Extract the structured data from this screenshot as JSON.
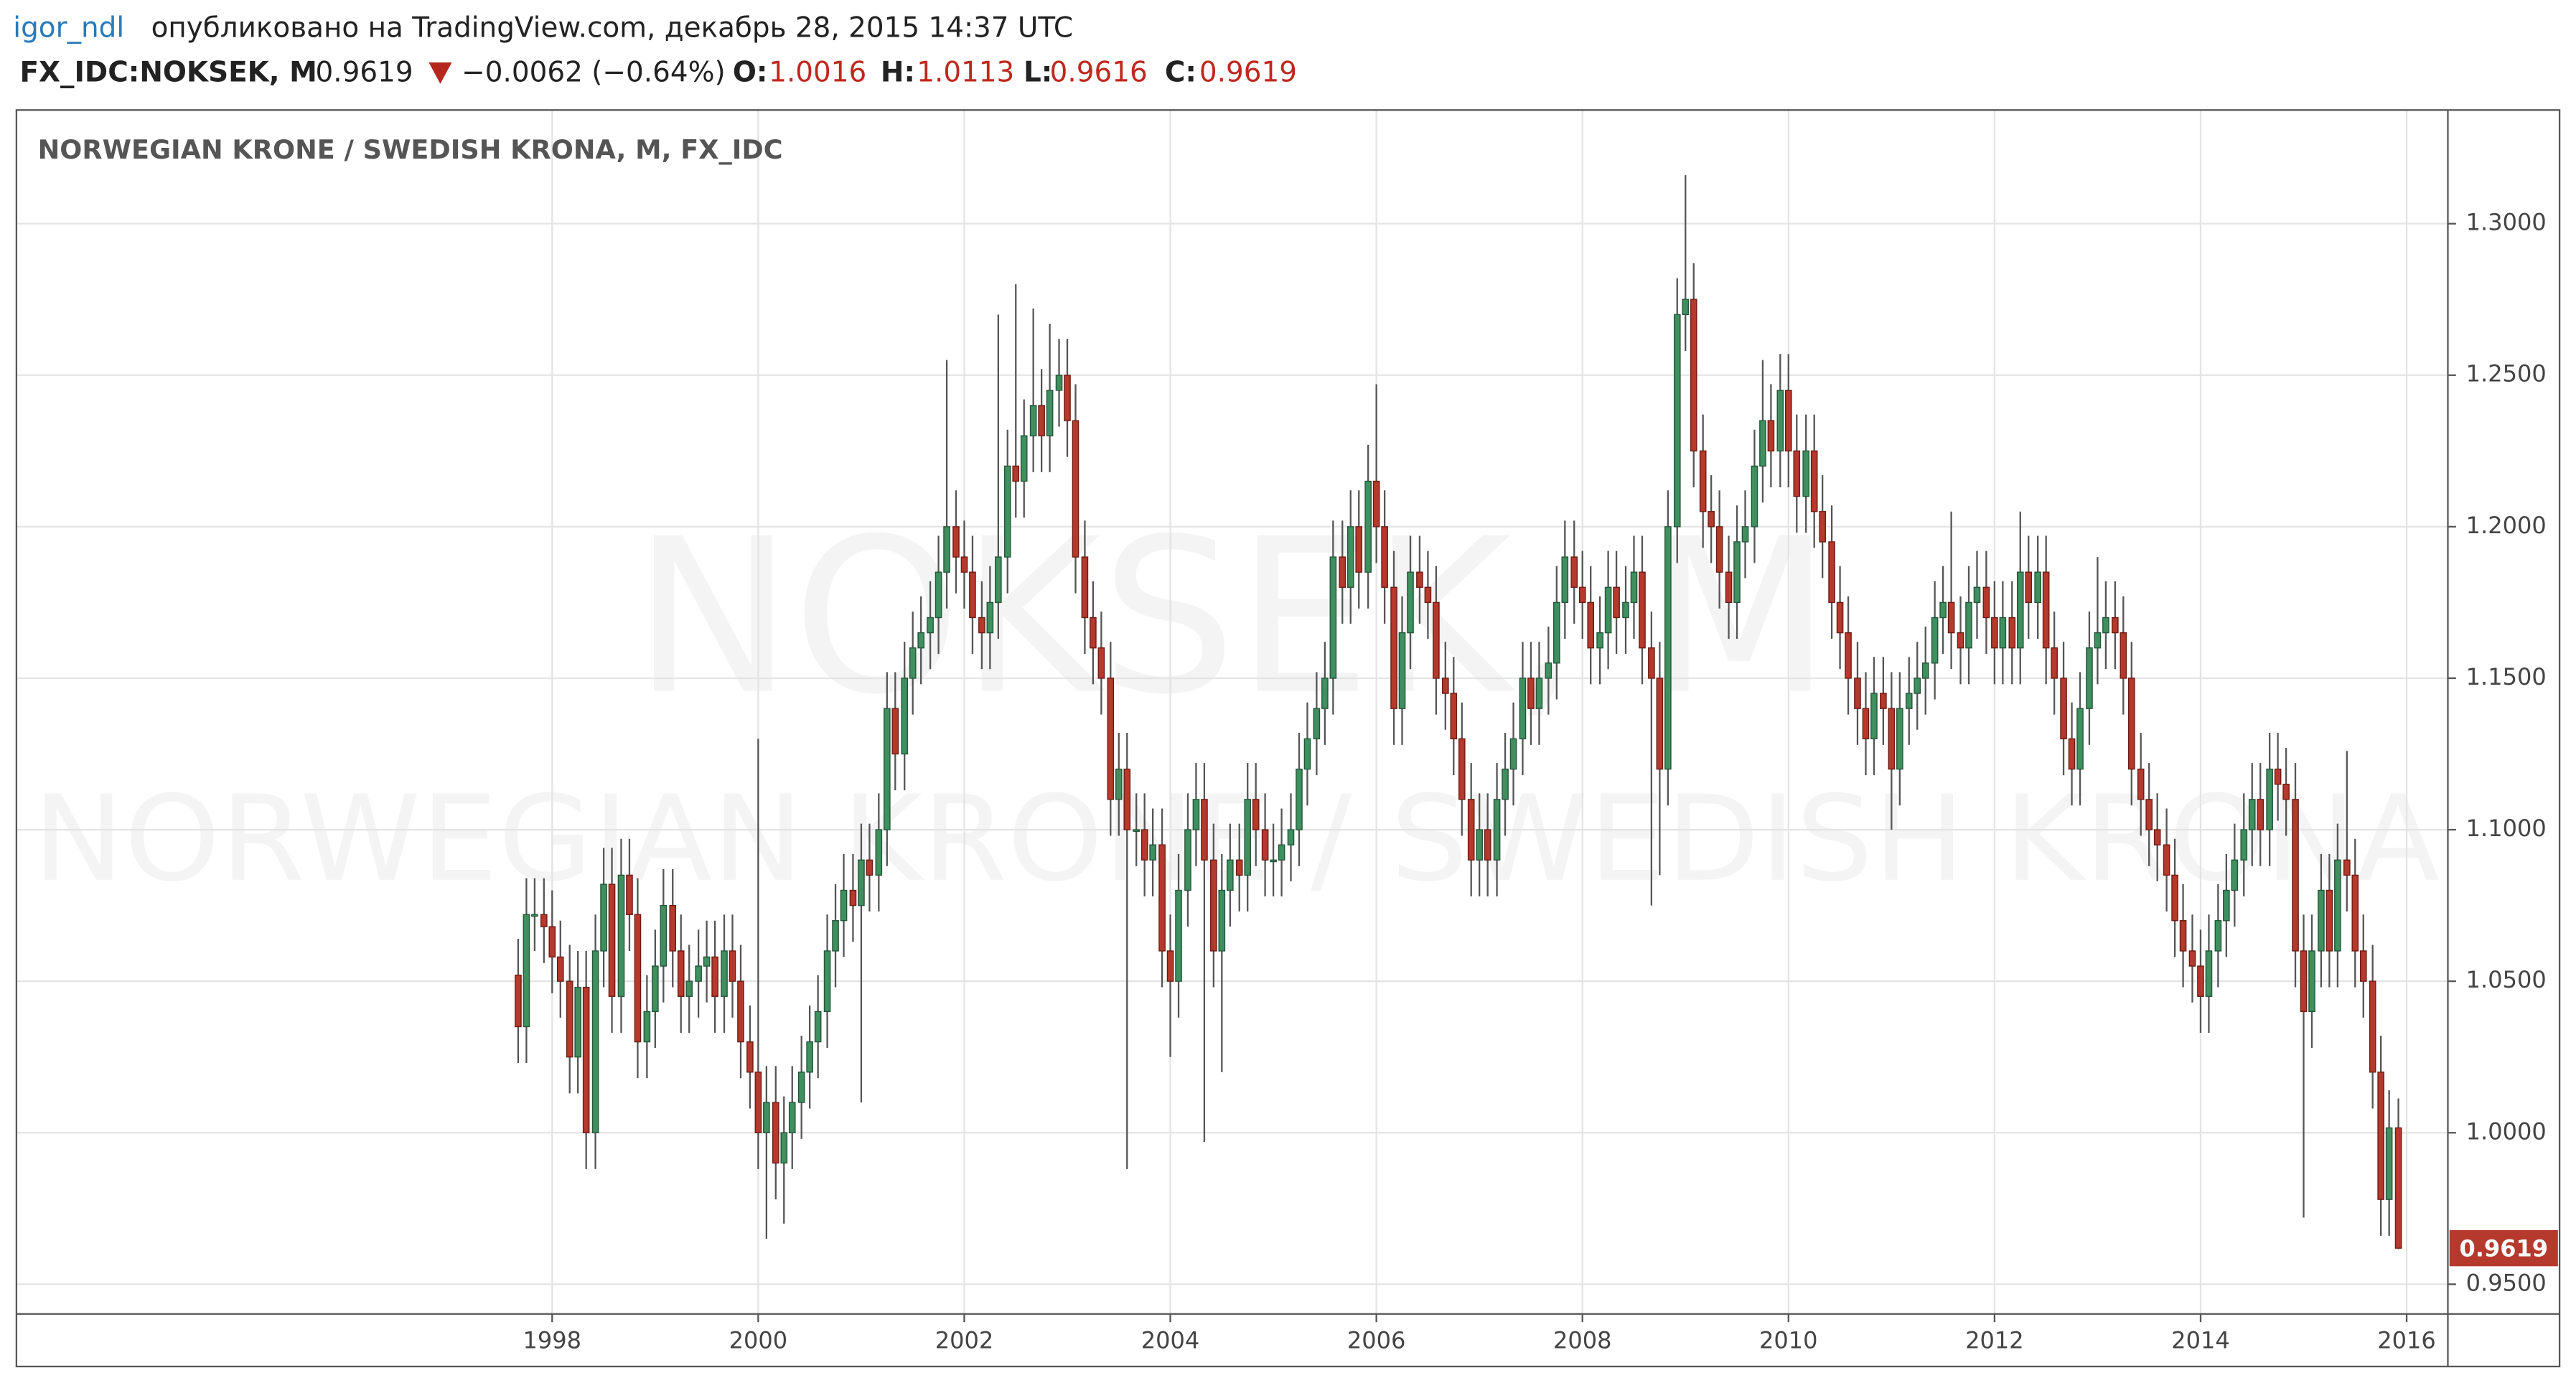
{
  "header": {
    "author": "igor_ndl",
    "published": "опубликовано на TradingView.com, декабрь 28, 2015 14:37 UTC",
    "symbol": "FX_IDC:NOKSEK, M",
    "last": "0.9619",
    "change": "−0.0062 (−0.64%)",
    "open_label": "O:",
    "open": "1.0016",
    "high_label": "H:",
    "high": "1.0113",
    "low_label": "L:",
    "low": "0.9616",
    "close_label": "C:",
    "close": "0.9619"
  },
  "chart_data": {
    "type": "candlestick",
    "title": "NORWEGIAN KRONE / SWEDISH KRONA, M, FX_IDC",
    "watermark": [
      "NOKSEK, M",
      "NORWEGIAN KRONE / SWEDISH KRONA"
    ],
    "up_color": "#3f8f5f",
    "down_color": "#b5392c",
    "grid": true,
    "xlim": [
      1992.8,
      2016.4
    ],
    "xticks": [
      1998,
      2000,
      2002,
      2004,
      2006,
      2008,
      2010,
      2012,
      2014,
      2016
    ],
    "ylim": [
      0.9402,
      1.3375
    ],
    "yticks": [
      {
        "value": 0.95,
        "label": "0.9500"
      },
      {
        "value": 1.0,
        "label": "1.0000"
      },
      {
        "value": 1.05,
        "label": "1.0500"
      },
      {
        "value": 1.1,
        "label": "1.1000"
      },
      {
        "value": 1.15,
        "label": "1.1500"
      },
      {
        "value": 1.2,
        "label": "1.2000"
      },
      {
        "value": 1.25,
        "label": "1.2500"
      },
      {
        "value": 1.3,
        "label": "1.3000"
      }
    ],
    "x": [
      1997.67,
      1997.75,
      1997.83,
      1997.92,
      1998,
      1998.08,
      1998.17,
      1998.25,
      1998.33,
      1998.42,
      1998.5,
      1998.58,
      1998.67,
      1998.75,
      1998.83,
      1998.92,
      1999,
      1999.08,
      1999.17,
      1999.25,
      1999.33,
      1999.42,
      1999.5,
      1999.58,
      1999.67,
      1999.75,
      1999.83,
      1999.92,
      2000,
      2000.08,
      2000.17,
      2000.25,
      2000.33,
      2000.42,
      2000.5,
      2000.58,
      2000.67,
      2000.75,
      2000.83,
      2000.92,
      2001,
      2001.08,
      2001.17,
      2001.25,
      2001.33,
      2001.42,
      2001.5,
      2001.58,
      2001.67,
      2001.75,
      2001.83,
      2001.92,
      2002,
      2002.08,
      2002.17,
      2002.25,
      2002.33,
      2002.42,
      2002.5,
      2002.58,
      2002.67,
      2002.75,
      2002.83,
      2002.92,
      2003,
      2003.08,
      2003.17,
      2003.25,
      2003.33,
      2003.42,
      2003.5,
      2003.58,
      2003.67,
      2003.75,
      2003.83,
      2003.92,
      2004,
      2004.08,
      2004.17,
      2004.25,
      2004.33,
      2004.42,
      2004.5,
      2004.58,
      2004.67,
      2004.75,
      2004.83,
      2004.92,
      2005,
      2005.08,
      2005.17,
      2005.25,
      2005.33,
      2005.42,
      2005.5,
      2005.58,
      2005.67,
      2005.75,
      2005.83,
      2005.92,
      2006,
      2006.08,
      2006.17,
      2006.25,
      2006.33,
      2006.42,
      2006.5,
      2006.58,
      2006.67,
      2006.75,
      2006.83,
      2006.92,
      2007,
      2007.08,
      2007.17,
      2007.25,
      2007.33,
      2007.42,
      2007.5,
      2007.58,
      2007.67,
      2007.75,
      2007.83,
      2007.92,
      2008,
      2008.08,
      2008.17,
      2008.25,
      2008.33,
      2008.42,
      2008.5,
      2008.58,
      2008.67,
      2008.75,
      2008.83,
      2008.92,
      2009,
      2009.08,
      2009.17,
      2009.25,
      2009.33,
      2009.42,
      2009.5,
      2009.58,
      2009.67,
      2009.75,
      2009.83,
      2009.92,
      2010,
      2010.08,
      2010.17,
      2010.25,
      2010.33,
      2010.42,
      2010.5,
      2010.58,
      2010.67,
      2010.75,
      2010.83,
      2010.92,
      2011,
      2011.08,
      2011.17,
      2011.25,
      2011.33,
      2011.42,
      2011.5,
      2011.58,
      2011.67,
      2011.75,
      2011.83,
      2011.92,
      2012,
      2012.08,
      2012.17,
      2012.25,
      2012.33,
      2012.42,
      2012.5,
      2012.58,
      2012.67,
      2012.75,
      2012.83,
      2012.92,
      2013,
      2013.08,
      2013.17,
      2013.25,
      2013.33,
      2013.42,
      2013.5,
      2013.58,
      2013.67,
      2013.75,
      2013.83,
      2013.92,
      2014,
      2014.08,
      2014.17,
      2014.25,
      2014.33,
      2014.42,
      2014.5,
      2014.58,
      2014.67,
      2014.75,
      2014.83,
      2014.92,
      2015,
      2015.08,
      2015.17,
      2015.25,
      2015.33,
      2015.42,
      2015.5,
      2015.58,
      2015.67,
      2015.75,
      2015.83,
      2015.92
    ],
    "open": [
      1.052,
      1.035,
      1.072,
      1.072,
      1.068,
      1.058,
      1.05,
      1.025,
      1.048,
      1.0,
      1.06,
      1.082,
      1.045,
      1.085,
      1.072,
      1.03,
      1.04,
      1.055,
      1.075,
      1.06,
      1.045,
      1.05,
      1.055,
      1.058,
      1.045,
      1.06,
      1.05,
      1.03,
      1.02,
      1.0,
      1.01,
      0.99,
      1.0,
      1.01,
      1.02,
      1.03,
      1.04,
      1.06,
      1.07,
      1.08,
      1.075,
      1.09,
      1.085,
      1.1,
      1.14,
      1.125,
      1.15,
      1.16,
      1.165,
      1.17,
      1.185,
      1.2,
      1.19,
      1.185,
      1.17,
      1.165,
      1.175,
      1.19,
      1.22,
      1.215,
      1.23,
      1.24,
      1.23,
      1.245,
      1.25,
      1.235,
      1.19,
      1.17,
      1.16,
      1.15,
      1.11,
      1.12,
      1.1,
      1.1,
      1.09,
      1.095,
      1.06,
      1.05,
      1.08,
      1.1,
      1.11,
      1.09,
      1.06,
      1.08,
      1.09,
      1.085,
      1.11,
      1.1,
      1.09,
      1.09,
      1.095,
      1.1,
      1.12,
      1.13,
      1.14,
      1.15,
      1.19,
      1.18,
      1.2,
      1.185,
      1.215,
      1.2,
      1.18,
      1.14,
      1.165,
      1.185,
      1.18,
      1.175,
      1.15,
      1.145,
      1.13,
      1.11,
      1.09,
      1.1,
      1.09,
      1.11,
      1.12,
      1.13,
      1.15,
      1.14,
      1.15,
      1.155,
      1.175,
      1.19,
      1.18,
      1.175,
      1.16,
      1.165,
      1.18,
      1.17,
      1.175,
      1.185,
      1.16,
      1.15,
      1.12,
      1.2,
      1.27,
      1.275,
      1.225,
      1.205,
      1.2,
      1.185,
      1.175,
      1.195,
      1.2,
      1.22,
      1.235,
      1.225,
      1.245,
      1.225,
      1.21,
      1.225,
      1.205,
      1.195,
      1.175,
      1.165,
      1.15,
      1.14,
      1.13,
      1.145,
      1.14,
      1.12,
      1.14,
      1.145,
      1.15,
      1.155,
      1.17,
      1.175,
      1.165,
      1.16,
      1.175,
      1.18,
      1.17,
      1.16,
      1.17,
      1.16,
      1.185,
      1.175,
      1.185,
      1.16,
      1.15,
      1.13,
      1.12,
      1.14,
      1.16,
      1.165,
      1.17,
      1.165,
      1.15,
      1.12,
      1.11,
      1.1,
      1.095,
      1.085,
      1.07,
      1.06,
      1.055,
      1.045,
      1.06,
      1.07,
      1.08,
      1.09,
      1.1,
      1.11,
      1.1,
      1.12,
      1.115,
      1.11,
      1.06,
      1.04,
      1.06,
      1.08,
      1.06,
      1.09,
      1.085,
      1.06,
      1.05,
      1.02,
      0.978,
      1.0016
    ],
    "high": [
      1.064,
      1.084,
      1.084,
      1.084,
      1.08,
      1.07,
      1.062,
      1.06,
      1.06,
      1.072,
      1.094,
      1.094,
      1.097,
      1.097,
      1.084,
      1.052,
      1.067,
      1.087,
      1.087,
      1.072,
      1.062,
      1.067,
      1.07,
      1.07,
      1.072,
      1.072,
      1.062,
      1.042,
      1.13,
      1.022,
      1.022,
      1.012,
      1.022,
      1.032,
      1.042,
      1.052,
      1.072,
      1.082,
      1.092,
      1.092,
      1.102,
      1.102,
      1.112,
      1.152,
      1.152,
      1.162,
      1.172,
      1.177,
      1.182,
      1.197,
      1.255,
      1.212,
      1.202,
      1.197,
      1.182,
      1.187,
      1.27,
      1.232,
      1.28,
      1.242,
      1.272,
      1.252,
      1.267,
      1.262,
      1.262,
      1.247,
      1.202,
      1.182,
      1.172,
      1.162,
      1.132,
      1.132,
      1.112,
      1.112,
      1.107,
      1.107,
      1.072,
      1.092,
      1.112,
      1.122,
      1.122,
      1.102,
      1.092,
      1.102,
      1.102,
      1.122,
      1.122,
      1.112,
      1.102,
      1.107,
      1.112,
      1.132,
      1.142,
      1.152,
      1.162,
      1.202,
      1.202,
      1.212,
      1.212,
      1.227,
      1.247,
      1.212,
      1.192,
      1.177,
      1.197,
      1.197,
      1.192,
      1.187,
      1.162,
      1.157,
      1.142,
      1.122,
      1.112,
      1.112,
      1.122,
      1.132,
      1.142,
      1.162,
      1.162,
      1.162,
      1.167,
      1.187,
      1.202,
      1.202,
      1.192,
      1.187,
      1.177,
      1.192,
      1.192,
      1.187,
      1.197,
      1.197,
      1.172,
      1.162,
      1.212,
      1.282,
      1.316,
      1.287,
      1.237,
      1.217,
      1.212,
      1.197,
      1.207,
      1.212,
      1.232,
      1.255,
      1.247,
      1.257,
      1.257,
      1.237,
      1.237,
      1.237,
      1.217,
      1.207,
      1.187,
      1.177,
      1.162,
      1.152,
      1.157,
      1.157,
      1.152,
      1.152,
      1.157,
      1.162,
      1.167,
      1.182,
      1.187,
      1.205,
      1.177,
      1.187,
      1.192,
      1.192,
      1.182,
      1.182,
      1.182,
      1.205,
      1.197,
      1.197,
      1.197,
      1.172,
      1.162,
      1.142,
      1.152,
      1.172,
      1.19,
      1.182,
      1.182,
      1.177,
      1.162,
      1.132,
      1.122,
      1.112,
      1.107,
      1.097,
      1.082,
      1.072,
      1.067,
      1.072,
      1.082,
      1.092,
      1.102,
      1.112,
      1.122,
      1.122,
      1.132,
      1.132,
      1.127,
      1.122,
      1.072,
      1.072,
      1.092,
      1.092,
      1.102,
      1.126,
      1.097,
      1.072,
      1.062,
      1.032,
      1.014,
      1.0113
    ],
    "low": [
      1.023,
      1.023,
      1.06,
      1.056,
      1.046,
      1.038,
      1.013,
      1.013,
      0.988,
      0.988,
      1.048,
      1.033,
      1.033,
      1.06,
      1.018,
      1.018,
      1.028,
      1.043,
      1.048,
      1.033,
      1.033,
      1.038,
      1.043,
      1.033,
      1.033,
      1.038,
      1.018,
      1.008,
      0.988,
      0.965,
      0.978,
      0.97,
      0.988,
      0.998,
      1.008,
      1.018,
      1.028,
      1.048,
      1.058,
      1.063,
      1.01,
      1.073,
      1.073,
      1.088,
      1.113,
      1.113,
      1.138,
      1.148,
      1.153,
      1.158,
      1.173,
      1.178,
      1.173,
      1.158,
      1.153,
      1.153,
      1.163,
      1.178,
      1.203,
      1.203,
      1.218,
      1.218,
      1.218,
      1.233,
      1.223,
      1.178,
      1.158,
      1.148,
      1.138,
      1.098,
      1.098,
      0.988,
      1.088,
      1.078,
      1.078,
      1.048,
      1.025,
      1.038,
      1.068,
      1.088,
      0.997,
      1.048,
      1.02,
      1.068,
      1.073,
      1.073,
      1.088,
      1.078,
      1.078,
      1.078,
      1.083,
      1.088,
      1.108,
      1.118,
      1.128,
      1.138,
      1.168,
      1.168,
      1.173,
      1.173,
      1.188,
      1.168,
      1.128,
      1.128,
      1.153,
      1.168,
      1.163,
      1.138,
      1.133,
      1.118,
      1.098,
      1.078,
      1.078,
      1.078,
      1.078,
      1.098,
      1.108,
      1.118,
      1.128,
      1.128,
      1.138,
      1.143,
      1.163,
      1.168,
      1.163,
      1.148,
      1.148,
      1.153,
      1.158,
      1.158,
      1.163,
      1.148,
      1.075,
      1.085,
      1.108,
      1.188,
      1.258,
      1.213,
      1.193,
      1.188,
      1.173,
      1.163,
      1.163,
      1.183,
      1.188,
      1.208,
      1.213,
      1.213,
      1.213,
      1.198,
      1.198,
      1.193,
      1.183,
      1.163,
      1.153,
      1.138,
      1.128,
      1.118,
      1.118,
      1.128,
      1.1,
      1.108,
      1.128,
      1.133,
      1.138,
      1.143,
      1.158,
      1.153,
      1.148,
      1.148,
      1.163,
      1.158,
      1.148,
      1.148,
      1.148,
      1.148,
      1.163,
      1.163,
      1.148,
      1.138,
      1.118,
      1.108,
      1.108,
      1.128,
      1.148,
      1.153,
      1.153,
      1.138,
      1.108,
      1.098,
      1.088,
      1.083,
      1.073,
      1.058,
      1.048,
      1.043,
      1.033,
      1.033,
      1.048,
      1.058,
      1.068,
      1.078,
      1.088,
      1.088,
      1.088,
      1.103,
      1.098,
      1.048,
      0.972,
      1.028,
      1.048,
      1.048,
      1.048,
      1.073,
      1.048,
      1.038,
      1.008,
      0.966,
      0.966,
      0.9616
    ],
    "close": [
      1.035,
      1.072,
      1.072,
      1.068,
      1.058,
      1.05,
      1.025,
      1.048,
      1.0,
      1.06,
      1.082,
      1.045,
      1.085,
      1.072,
      1.03,
      1.04,
      1.055,
      1.075,
      1.06,
      1.045,
      1.05,
      1.055,
      1.058,
      1.045,
      1.06,
      1.05,
      1.03,
      1.02,
      1.0,
      1.01,
      0.99,
      1.0,
      1.01,
      1.02,
      1.03,
      1.04,
      1.06,
      1.07,
      1.08,
      1.075,
      1.09,
      1.085,
      1.1,
      1.14,
      1.125,
      1.15,
      1.16,
      1.165,
      1.17,
      1.185,
      1.2,
      1.19,
      1.185,
      1.17,
      1.165,
      1.175,
      1.19,
      1.22,
      1.215,
      1.23,
      1.24,
      1.23,
      1.245,
      1.25,
      1.235,
      1.19,
      1.17,
      1.16,
      1.15,
      1.11,
      1.12,
      1.1,
      1.1,
      1.09,
      1.095,
      1.06,
      1.05,
      1.08,
      1.1,
      1.11,
      1.09,
      1.06,
      1.08,
      1.09,
      1.085,
      1.11,
      1.1,
      1.09,
      1.09,
      1.095,
      1.1,
      1.12,
      1.13,
      1.14,
      1.15,
      1.19,
      1.18,
      1.2,
      1.185,
      1.215,
      1.2,
      1.18,
      1.14,
      1.165,
      1.185,
      1.18,
      1.175,
      1.15,
      1.145,
      1.13,
      1.11,
      1.09,
      1.1,
      1.09,
      1.11,
      1.12,
      1.13,
      1.15,
      1.14,
      1.15,
      1.155,
      1.175,
      1.19,
      1.18,
      1.175,
      1.16,
      1.165,
      1.18,
      1.17,
      1.175,
      1.185,
      1.16,
      1.15,
      1.12,
      1.2,
      1.27,
      1.275,
      1.225,
      1.205,
      1.2,
      1.185,
      1.175,
      1.195,
      1.2,
      1.22,
      1.235,
      1.225,
      1.245,
      1.225,
      1.21,
      1.225,
      1.205,
      1.195,
      1.175,
      1.165,
      1.15,
      1.14,
      1.13,
      1.145,
      1.14,
      1.12,
      1.14,
      1.145,
      1.15,
      1.155,
      1.17,
      1.175,
      1.165,
      1.16,
      1.175,
      1.18,
      1.17,
      1.16,
      1.17,
      1.16,
      1.185,
      1.175,
      1.185,
      1.16,
      1.15,
      1.13,
      1.12,
      1.14,
      1.16,
      1.165,
      1.17,
      1.165,
      1.15,
      1.12,
      1.11,
      1.1,
      1.095,
      1.085,
      1.07,
      1.06,
      1.055,
      1.045,
      1.06,
      1.07,
      1.08,
      1.09,
      1.1,
      1.11,
      1.1,
      1.12,
      1.115,
      1.11,
      1.06,
      1.04,
      1.06,
      1.08,
      1.06,
      1.09,
      1.085,
      1.06,
      1.05,
      1.02,
      0.978,
      1.0016,
      0.9619
    ]
  }
}
